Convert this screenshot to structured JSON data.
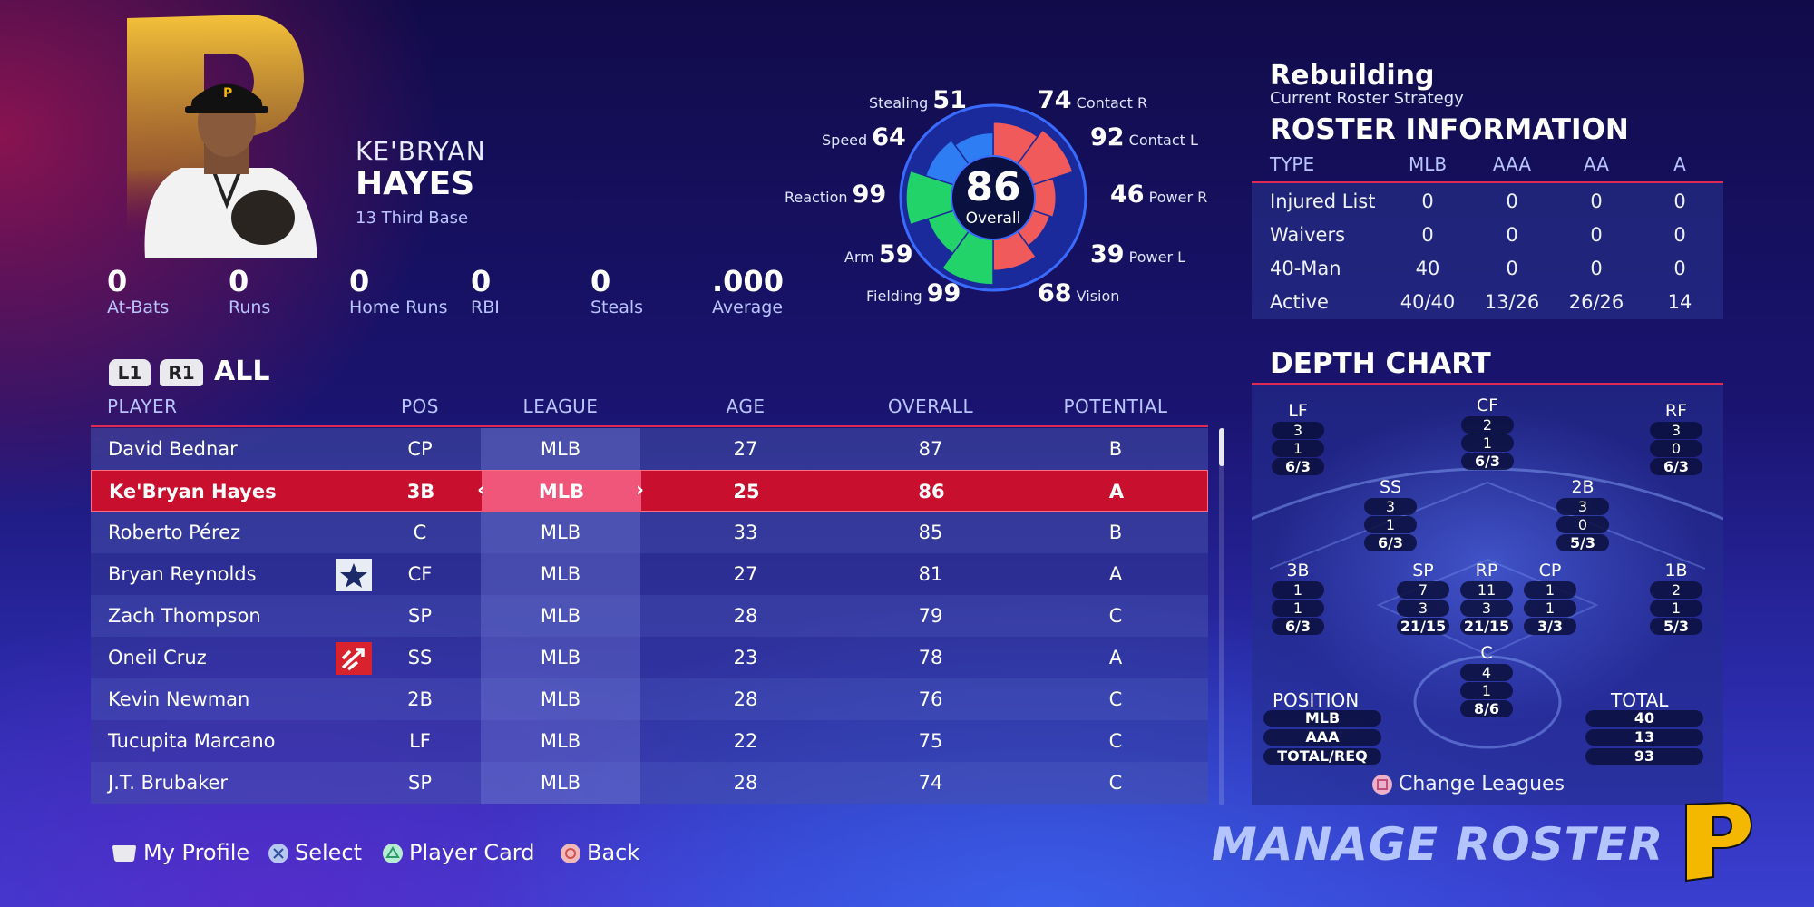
{
  "player": {
    "first_name": "KE'BRYAN",
    "last_name": "HAYES",
    "number_position": "13  Third Base",
    "stats": [
      {
        "value": "0",
        "label": "At-Bats"
      },
      {
        "value": "0",
        "label": "Runs"
      },
      {
        "value": "0",
        "label": "Home Runs"
      },
      {
        "value": "0",
        "label": "RBI"
      },
      {
        "value": "0",
        "label": "Steals"
      },
      {
        "value": ".000",
        "label": "Average"
      }
    ]
  },
  "radar": {
    "overall": "86",
    "overall_label": "Overall",
    "attributes": {
      "stealing": {
        "label": "Stealing",
        "value": "51"
      },
      "speed": {
        "label": "Speed",
        "value": "64"
      },
      "reaction": {
        "label": "Reaction",
        "value": "99"
      },
      "arm": {
        "label": "Arm",
        "value": "59"
      },
      "fielding": {
        "label": "Fielding",
        "value": "99"
      },
      "contact_r": {
        "label": "Contact R",
        "value": "74"
      },
      "contact_l": {
        "label": "Contact L",
        "value": "92"
      },
      "power_r": {
        "label": "Power R",
        "value": "46"
      },
      "power_l": {
        "label": "Power L",
        "value": "39"
      },
      "vision": {
        "label": "Vision",
        "value": "68"
      }
    },
    "colors": {
      "baserunning": "#2f7df2",
      "fielding": "#22d36a",
      "hitting": "#f05a5a"
    }
  },
  "filter": {
    "l1": "L1",
    "r1": "R1",
    "label": "ALL"
  },
  "table": {
    "headers": {
      "player": "PLAYER",
      "pos": "POS",
      "league": "LEAGUE",
      "age": "AGE",
      "overall": "OVERALL",
      "potential": "POTENTIAL"
    },
    "rows": [
      {
        "name": "David Bednar",
        "pos": "CP",
        "league": "MLB",
        "age": "27",
        "overall": "87",
        "potential": "B"
      },
      {
        "name": "Ke'Bryan Hayes",
        "pos": "3B",
        "league": "MLB",
        "age": "25",
        "overall": "86",
        "potential": "A"
      },
      {
        "name": "Roberto Pérez",
        "pos": "C",
        "league": "MLB",
        "age": "33",
        "overall": "85",
        "potential": "B"
      },
      {
        "name": "Bryan Reynolds",
        "pos": "CF",
        "league": "MLB",
        "age": "27",
        "overall": "81",
        "potential": "A"
      },
      {
        "name": "Zach Thompson",
        "pos": "SP",
        "league": "MLB",
        "age": "28",
        "overall": "79",
        "potential": "C"
      },
      {
        "name": "Oneil Cruz",
        "pos": "SS",
        "league": "MLB",
        "age": "23",
        "overall": "78",
        "potential": "A"
      },
      {
        "name": "Kevin Newman",
        "pos": "2B",
        "league": "MLB",
        "age": "28",
        "overall": "76",
        "potential": "C"
      },
      {
        "name": "Tucupita Marcano",
        "pos": "LF",
        "league": "MLB",
        "age": "22",
        "overall": "75",
        "potential": "C"
      },
      {
        "name": "J.T. Brubaker",
        "pos": "SP",
        "league": "MLB",
        "age": "28",
        "overall": "74",
        "potential": "C"
      }
    ]
  },
  "strategy": {
    "title": "Rebuilding",
    "subtitle": "Current Roster Strategy"
  },
  "roster_info": {
    "title": "ROSTER INFORMATION",
    "headers": [
      "TYPE",
      "MLB",
      "AAA",
      "AA",
      "A"
    ],
    "rows": [
      {
        "type": "Injured List",
        "mlb": "0",
        "aaa": "0",
        "aa": "0",
        "a": "0"
      },
      {
        "type": "Waivers",
        "mlb": "0",
        "aaa": "0",
        "aa": "0",
        "a": "0"
      },
      {
        "type": "40-Man",
        "mlb": "40",
        "aaa": "0",
        "aa": "0",
        "a": "0"
      },
      {
        "type": "Active",
        "mlb": "40/40",
        "aaa": "13/26",
        "aa": "26/26",
        "a": "14"
      }
    ]
  },
  "depth_chart": {
    "title": "DEPTH CHART",
    "positions": {
      "lf": {
        "label": "LF",
        "v1": "3",
        "v2": "1",
        "v3": "6/3"
      },
      "cf": {
        "label": "CF",
        "v1": "2",
        "v2": "1",
        "v3": "6/3"
      },
      "rf": {
        "label": "RF",
        "v1": "3",
        "v2": "0",
        "v3": "6/3"
      },
      "ss": {
        "label": "SS",
        "v1": "3",
        "v2": "1",
        "v3": "6/3"
      },
      "2b": {
        "label": "2B",
        "v1": "3",
        "v2": "0",
        "v3": "5/3"
      },
      "3b": {
        "label": "3B",
        "v1": "1",
        "v2": "1",
        "v3": "6/3"
      },
      "sp": {
        "label": "SP",
        "v1": "7",
        "v2": "3",
        "v3": "21/15"
      },
      "rp": {
        "label": "RP",
        "v1": "11",
        "v2": "3",
        "v3": "21/15"
      },
      "cp": {
        "label": "CP",
        "v1": "1",
        "v2": "1",
        "v3": "3/3"
      },
      "1b": {
        "label": "1B",
        "v1": "2",
        "v2": "1",
        "v3": "5/3"
      },
      "c": {
        "label": "C",
        "v1": "4",
        "v2": "1",
        "v3": "8/6"
      }
    },
    "legend": {
      "position_label": "POSITION",
      "mlb": "MLB",
      "aaa": "AAA",
      "total_req": "TOTAL/REQ",
      "total_label": "TOTAL",
      "total_mlb": "40",
      "total_aaa": "13",
      "total_all": "93"
    },
    "change_leagues": "Change Leagues"
  },
  "footer": {
    "my_profile": "My Profile",
    "select": "Select",
    "player_card": "Player Card",
    "back": "Back",
    "title": "MANAGE ROSTER"
  },
  "team_logo_letter": "P",
  "colors": {
    "accent_red": "#c8102e",
    "team_gold": "#f5b800"
  }
}
